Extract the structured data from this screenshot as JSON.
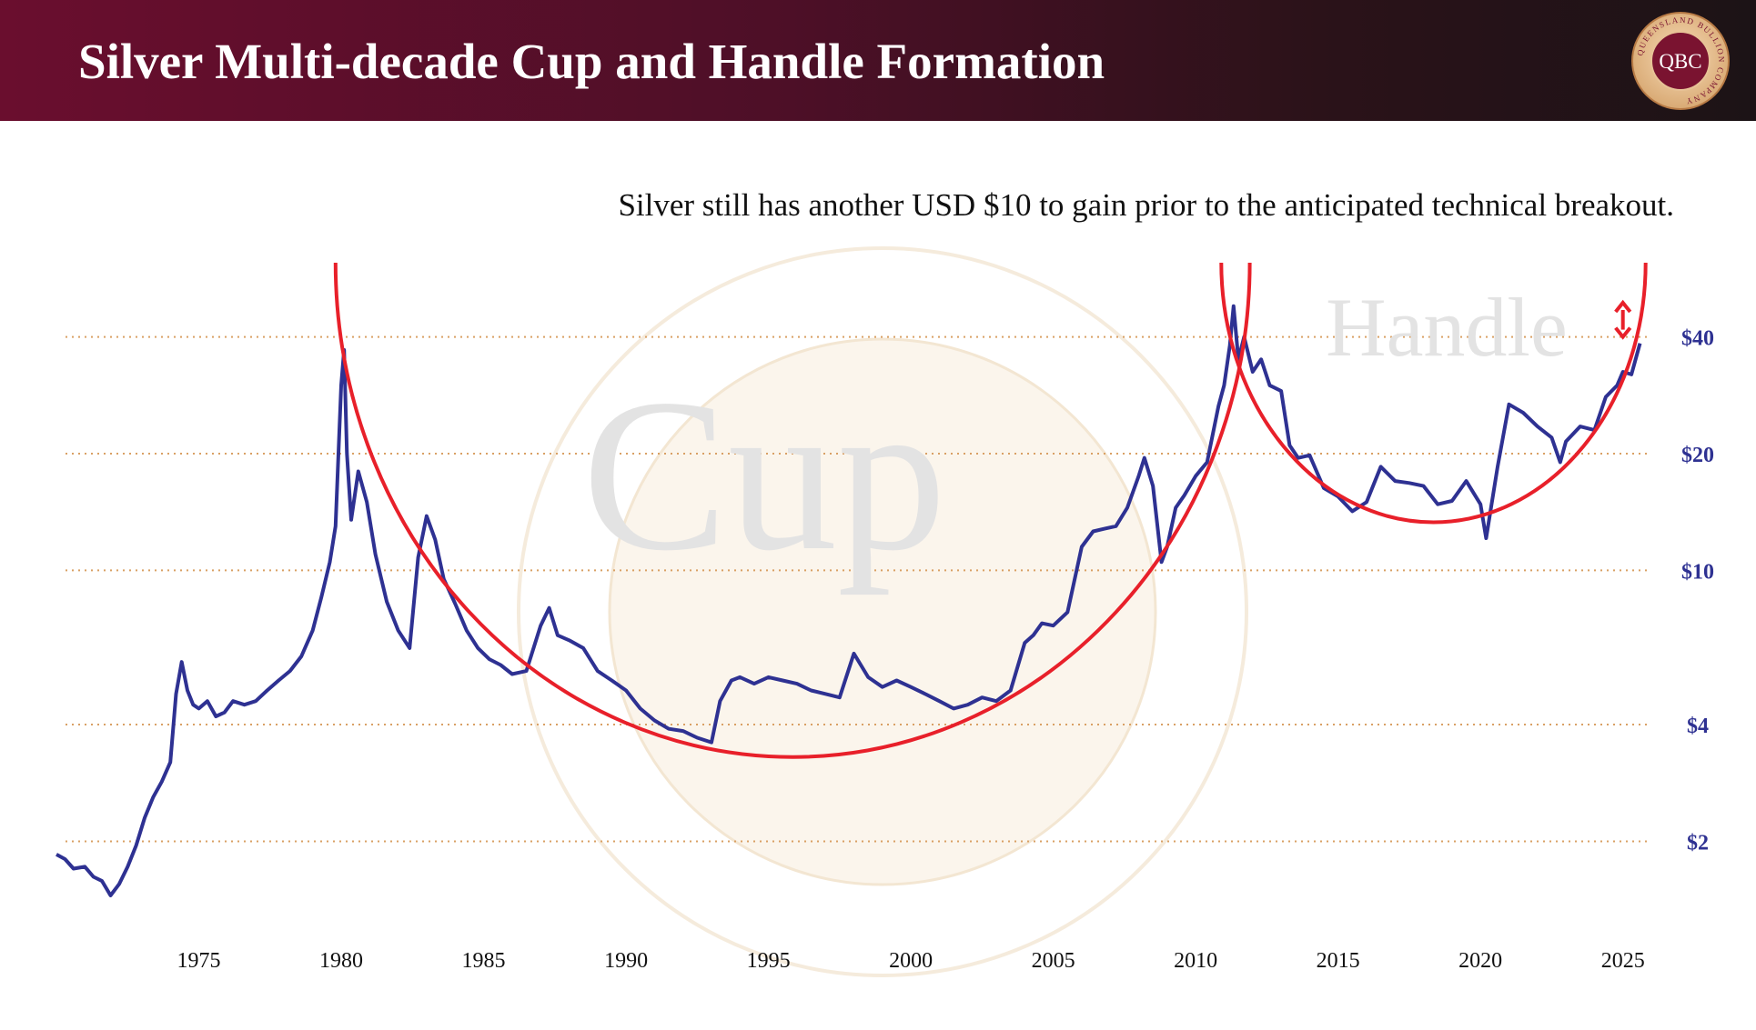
{
  "header": {
    "title": "Silver Multi-decade Cup and Handle Formation",
    "logo_text": "QBC",
    "logo_ring_text": "QUEENSLAND BULLION COMPANY"
  },
  "subtitle": "Silver still has another USD $10 to gain prior to the anticipated technical breakout.",
  "colors": {
    "header_start": "#6a0e2e",
    "header_end": "#1c1316",
    "series_line": "#2e3192",
    "pattern_arcs": "#e8202a",
    "grid": "#d9a064",
    "y_tick_labels": "#2e3192",
    "watermark_text": "#e3e3e3"
  },
  "chart_data": {
    "type": "line",
    "title": "Silver Multi-decade Cup and Handle Formation",
    "subtitle": "Silver still has another USD $10 to gain prior to the anticipated technical breakout.",
    "xlabel": "",
    "ylabel": "",
    "xlim": [
      1970.0,
      2026.0
    ],
    "ylim": [
      1.45,
      49
    ],
    "y_scale": "log",
    "x_ticks": [
      1975,
      1980,
      1985,
      1990,
      1995,
      2000,
      2005,
      2010,
      2015,
      2020,
      2025
    ],
    "x_tick_labels": [
      "1975",
      "1980",
      "1985",
      "1990",
      "1995",
      "2000",
      "2005",
      "2010",
      "2015",
      "2020",
      "2025"
    ],
    "y_ticks": [
      2,
      4,
      10,
      20,
      40
    ],
    "y_tick_labels": [
      "$2",
      "$4",
      "$10",
      "$20",
      "$40"
    ],
    "y_tick_position": "right",
    "grid": "horizontal dotted at y ticks",
    "series": [
      {
        "name": "",
        "color": "#2e3192",
        "x": [
          1970.0,
          1970.3,
          1970.6,
          1971.0,
          1971.3,
          1971.6,
          1971.9,
          1972.2,
          1972.5,
          1972.8,
          1973.1,
          1973.4,
          1973.7,
          1974.0,
          1974.2,
          1974.4,
          1974.6,
          1974.8,
          1975.0,
          1975.3,
          1975.6,
          1975.9,
          1976.2,
          1976.6,
          1977.0,
          1977.4,
          1977.8,
          1978.2,
          1978.6,
          1979.0,
          1979.3,
          1979.6,
          1979.8,
          1980.0,
          1980.1,
          1980.2,
          1980.35,
          1980.6,
          1980.9,
          1981.2,
          1981.6,
          1982.0,
          1982.4,
          1982.7,
          1983.0,
          1983.3,
          1983.6,
          1984.0,
          1984.4,
          1984.8,
          1985.2,
          1985.6,
          1986.0,
          1986.5,
          1987.0,
          1987.3,
          1987.6,
          1988.0,
          1988.5,
          1989.0,
          1989.5,
          1990.0,
          1990.5,
          1991.0,
          1991.5,
          1992.0,
          1992.5,
          1993.0,
          1993.3,
          1993.7,
          1994.0,
          1994.5,
          1995.0,
          1995.5,
          1996.0,
          1996.5,
          1997.0,
          1997.5,
          1998.0,
          1998.5,
          1999.0,
          1999.5,
          2000.0,
          2000.5,
          2001.0,
          2001.5,
          2002.0,
          2002.5,
          2003.0,
          2003.5,
          2004.0,
          2004.3,
          2004.6,
          2005.0,
          2005.5,
          2006.0,
          2006.4,
          2006.8,
          2007.2,
          2007.6,
          2008.0,
          2008.2,
          2008.5,
          2008.8,
          2009.0,
          2009.3,
          2009.6,
          2010.0,
          2010.4,
          2010.8,
          2011.0,
          2011.2,
          2011.33,
          2011.5,
          2011.7,
          2012.0,
          2012.3,
          2012.6,
          2013.0,
          2013.3,
          2013.6,
          2014.0,
          2014.5,
          2015.0,
          2015.5,
          2016.0,
          2016.5,
          2017.0,
          2017.5,
          2018.0,
          2018.5,
          2019.0,
          2019.5,
          2020.0,
          2020.2,
          2020.6,
          2021.0,
          2021.5,
          2022.0,
          2022.5,
          2022.8,
          2023.0,
          2023.5,
          2024.0,
          2024.4,
          2024.8,
          2025.0,
          2025.3,
          2025.6
        ],
        "y": [
          1.85,
          1.8,
          1.7,
          1.72,
          1.62,
          1.58,
          1.45,
          1.55,
          1.72,
          1.95,
          2.3,
          2.6,
          2.85,
          3.2,
          4.8,
          5.8,
          4.9,
          4.5,
          4.4,
          4.6,
          4.2,
          4.3,
          4.6,
          4.5,
          4.6,
          4.9,
          5.2,
          5.5,
          6.0,
          7.0,
          8.5,
          10.5,
          13.0,
          30.0,
          37.0,
          20.0,
          13.5,
          18.0,
          15.0,
          11.0,
          8.3,
          7.0,
          6.3,
          10.8,
          13.8,
          12.0,
          9.5,
          8.2,
          7.0,
          6.3,
          5.9,
          5.7,
          5.4,
          5.5,
          7.2,
          8.0,
          6.8,
          6.6,
          6.3,
          5.5,
          5.2,
          4.9,
          4.4,
          4.1,
          3.9,
          3.85,
          3.7,
          3.6,
          4.6,
          5.2,
          5.3,
          5.1,
          5.3,
          5.2,
          5.1,
          4.9,
          4.8,
          4.7,
          6.1,
          5.3,
          5.0,
          5.2,
          5.0,
          4.8,
          4.6,
          4.4,
          4.5,
          4.7,
          4.6,
          4.9,
          6.5,
          6.8,
          7.3,
          7.2,
          7.8,
          11.5,
          12.6,
          12.8,
          13.0,
          14.5,
          17.5,
          19.5,
          16.5,
          10.5,
          11.5,
          14.5,
          15.6,
          17.5,
          19.0,
          26.5,
          30.0,
          38.0,
          48.0,
          35.0,
          40.0,
          32.5,
          35.0,
          30.0,
          29.0,
          21.0,
          19.5,
          19.8,
          16.3,
          15.5,
          14.2,
          15.0,
          18.5,
          17.0,
          16.8,
          16.5,
          14.8,
          15.1,
          17.0,
          14.8,
          12.1,
          18.5,
          26.8,
          25.5,
          23.5,
          22.0,
          19.0,
          21.5,
          23.5,
          23.0,
          28.0,
          30.0,
          32.5,
          32.0,
          38.5
        ]
      }
    ],
    "annotations": [
      {
        "text": "Cup",
        "style": "large grey watermark text"
      },
      {
        "text": "Handle",
        "style": "grey watermark text"
      },
      {
        "shape": "arc",
        "label": "cup",
        "color": "#e8202a",
        "x_span": [
          1979.8,
          2011.9
        ],
        "bottom_y": 3.3
      },
      {
        "shape": "arc",
        "label": "handle",
        "color": "#e8202a",
        "x_span": [
          2010.9,
          2025.8
        ],
        "bottom_y": 13.3
      },
      {
        "shape": "double-arrow",
        "color": "#e8202a",
        "x": 2025.0,
        "y_range": [
          40,
          49
        ]
      }
    ]
  }
}
